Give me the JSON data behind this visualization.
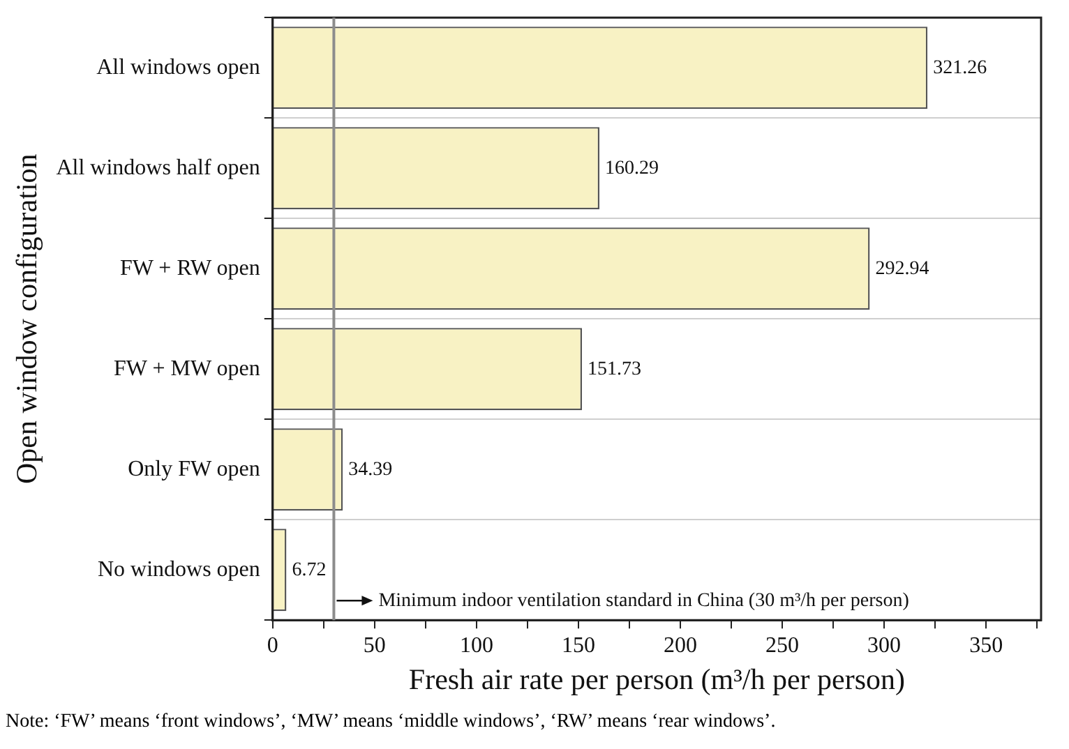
{
  "chart_data": {
    "type": "bar",
    "orientation": "horizontal",
    "categories": [
      "All windows open",
      "All windows half open",
      "FW + RW open",
      "FW + MW open",
      "Only FW open",
      "No windows open"
    ],
    "values": [
      321.26,
      160.29,
      292.94,
      151.73,
      34.39,
      6.72
    ],
    "color": "#f8f2c4",
    "data_labels": true,
    "xlabel": "Fresh air rate per person (m³/h per person)",
    "ylabel": "Open window configuration",
    "xlim": [
      0,
      377
    ],
    "xticks": [
      0,
      {
        "value": 25,
        "label": null
      },
      50,
      {
        "value": 75,
        "label": null
      },
      100,
      {
        "value": 125,
        "label": null
      },
      150,
      {
        "value": 175,
        "label": null
      },
      200,
      {
        "value": 225,
        "label": null
      },
      250,
      {
        "value": 275,
        "label": null
      },
      300,
      {
        "value": 325,
        "label": null
      },
      350,
      {
        "value": 375,
        "label": null
      }
    ],
    "grid": "y",
    "legend": false,
    "ref_lines": [
      {
        "axis": "x",
        "value": 30,
        "color": "#8c8c8c"
      }
    ],
    "annotations": [
      {
        "text": "Minimum indoor ventilation standard in China (30 m³/h per person)",
        "x": 30,
        "y": "No windows open"
      },
      "Note:  ‘FW’ means ‘front windows’, ‘MW’ means ‘middle windows’, ‘RW’ means ‘rear windows’."
    ]
  }
}
